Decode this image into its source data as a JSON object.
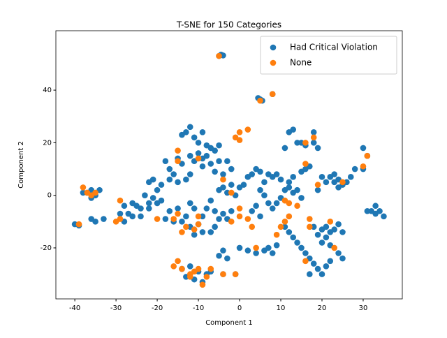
{
  "chart_data": {
    "type": "scatter",
    "title": "T-SNE for 150 Categories",
    "x_label": "Component 1",
    "y_label": "Component 2",
    "xlim": [
      -44.6,
      39.5
    ],
    "ylim": [
      -39.4,
      62.6
    ],
    "xticks": [
      -40,
      -30,
      -20,
      -10,
      0,
      10,
      20,
      30
    ],
    "yticks": [
      -20,
      0,
      20,
      40
    ],
    "legend": "upper right",
    "series": [
      {
        "name": "Had Critical Violation",
        "color": "#1f77b4",
        "x": [
          -4.5,
          -5,
          -4,
          5,
          5.5,
          4.5,
          8,
          -37,
          -36,
          -35,
          -38,
          -36,
          -34,
          -40,
          -39,
          -36,
          -35,
          -33,
          -29,
          -28,
          -28,
          -27,
          -26,
          -25,
          -24,
          -22,
          -21,
          -20,
          -19,
          -24,
          -26,
          -22,
          -23,
          -20,
          -22,
          -21,
          -19,
          -18,
          -17,
          -16,
          -17,
          -15,
          -13,
          -12,
          -14,
          -15,
          -12,
          -11,
          -10,
          -9,
          -8,
          -9,
          -7,
          -6,
          -5,
          -5,
          -3,
          -2,
          -4,
          -6,
          -14,
          -13,
          -12,
          -11,
          -10,
          -9,
          -8,
          -7,
          -4,
          -3,
          -2,
          0,
          1,
          -1,
          -5,
          -7,
          -6,
          -4,
          -3,
          -2,
          -5,
          -8,
          -9,
          -11,
          -12,
          -13,
          -14,
          -15,
          -16,
          -17,
          -18,
          -10,
          -12,
          -9,
          -11,
          -7,
          -6,
          2,
          3,
          4,
          5,
          6,
          7,
          8,
          9,
          10,
          5,
          6,
          7,
          4,
          3,
          5,
          8,
          9,
          10,
          11,
          12,
          13,
          14,
          15,
          12,
          13,
          15,
          16,
          17,
          11,
          12,
          13,
          14,
          15,
          16,
          17,
          18,
          19,
          20,
          17,
          21,
          22,
          20,
          21,
          22,
          19,
          23,
          21,
          18,
          24,
          25,
          20,
          22,
          24,
          25,
          23,
          24,
          25,
          22,
          26,
          24,
          23,
          27,
          21,
          19,
          20,
          28,
          30,
          30,
          31,
          32,
          33,
          34,
          35,
          33,
          31,
          14,
          15,
          16,
          13,
          12,
          11,
          18,
          18,
          19,
          -12,
          -10,
          -8,
          -13,
          -11,
          -9,
          -14,
          -7,
          -4,
          -1,
          -5,
          -3,
          -4,
          0,
          2,
          4,
          6,
          7,
          8,
          9
        ],
        "y": [
          53.5,
          53,
          53.2,
          36.5,
          36,
          37,
          38.5,
          1,
          2,
          0,
          1,
          -1,
          2,
          -11,
          -11.5,
          -9,
          -10,
          -9,
          -7,
          -10,
          -4,
          -7,
          -3,
          -4,
          -5,
          -5,
          -1,
          -3,
          -2,
          -8,
          -8,
          -3,
          0,
          2,
          5,
          6,
          4,
          13,
          10,
          8,
          6,
          5,
          6,
          8,
          12,
          14,
          15,
          13,
          16,
          14,
          15,
          11,
          12,
          17,
          19,
          13,
          13,
          10,
          8,
          9,
          23,
          24,
          26,
          22,
          20,
          24,
          19,
          18,
          3,
          1,
          4,
          3,
          4,
          0,
          2,
          -2,
          -6,
          -7,
          -9,
          -6,
          -9,
          -5,
          -8,
          -5,
          -3,
          -8,
          -10,
          -5,
          -10,
          -6,
          -9,
          -11,
          -12,
          -14,
          -15,
          -14,
          -12,
          7,
          8,
          10,
          9,
          5,
          8,
          7,
          8,
          6,
          2,
          0,
          -3,
          -4,
          -6,
          -8,
          -5,
          -3,
          -1,
          2,
          3,
          1,
          2,
          -1,
          5,
          7,
          9,
          10,
          11,
          -12,
          -14,
          -16,
          -18,
          -20,
          -22,
          -24,
          -26,
          -28,
          -30,
          -30,
          -27,
          -25,
          -13,
          -12,
          -14,
          -15,
          -13,
          -16,
          -12,
          -11,
          -14,
          -18,
          -19,
          -22,
          -24,
          5,
          6,
          4,
          7,
          5,
          3,
          8,
          7,
          5,
          2,
          7,
          10,
          18,
          10,
          15,
          -6,
          -7,
          -6,
          -8,
          -4,
          -6,
          20,
          20,
          19,
          25,
          24,
          18,
          24,
          20,
          18,
          -27,
          -29,
          -30,
          -31,
          -32,
          -33,
          -28,
          -29,
          -30,
          -30,
          -23,
          -24,
          -21,
          -20,
          -21,
          -22,
          -21,
          -20,
          -22,
          -19
        ]
      },
      {
        "name": "None",
        "color": "#ff7f0e",
        "x": [
          -38,
          -37,
          -35,
          -36,
          -39,
          -29,
          -29,
          -30,
          -20,
          -15,
          -15,
          -15,
          -16,
          -14,
          -10,
          -11,
          -10,
          -13,
          -10,
          -4,
          -2,
          0,
          0,
          0,
          0,
          2,
          -1,
          -2,
          2,
          3,
          4,
          5,
          8,
          10,
          9,
          11,
          12,
          11,
          12,
          14,
          16,
          16,
          18,
          19,
          17,
          17,
          16,
          22,
          23,
          25,
          30,
          31,
          -15,
          -14,
          -16,
          -12,
          -10,
          -11,
          -8,
          -9,
          -7,
          -4,
          -1,
          -5,
          -12
        ],
        "y": [
          3,
          1,
          1,
          0,
          -11,
          -2,
          -9,
          -10,
          -9,
          17,
          13,
          -7,
          -9,
          -14,
          -11,
          -13,
          -8,
          -12,
          14,
          6,
          1,
          -5,
          -8,
          21,
          24,
          25,
          22,
          -10,
          -9,
          -12,
          -20,
          36,
          38.5,
          -12,
          -15,
          -10,
          -8,
          -2,
          -3,
          -4,
          12,
          20,
          22,
          4,
          -9,
          -12,
          -25,
          -10,
          -20,
          5,
          11,
          15,
          -25,
          -28,
          -27,
          -31,
          -28,
          -29,
          -31,
          -34,
          -28,
          -30,
          -30,
          53,
          -30
        ]
      }
    ]
  }
}
